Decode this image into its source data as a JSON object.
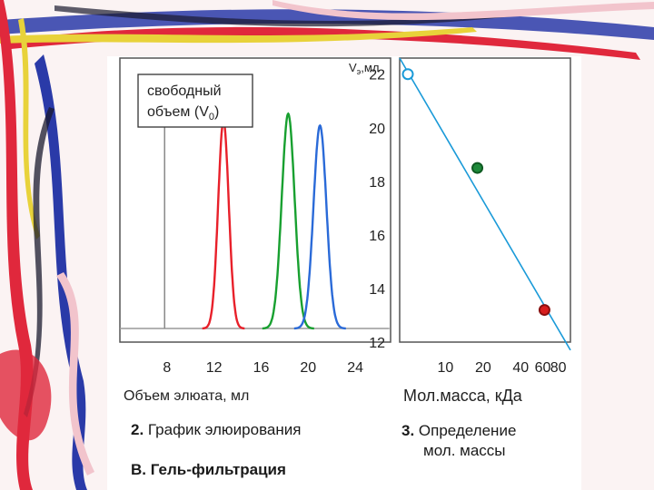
{
  "frame_colors": {
    "background": "#fbf3f3",
    "red": "#e0283c",
    "blue": "#2a3aa8",
    "yellow": "#e8d23a",
    "pink": "#f2c4cc",
    "dark": "#1a1a2e"
  },
  "chart_data": [
    {
      "type": "line",
      "annotation": {
        "line1": "свободный",
        "line2": "объем (V",
        "sub": "0",
        "close": ")"
      },
      "xlabel": "Объем элюата, мл",
      "xticks": [
        8,
        12,
        16,
        20,
        24
      ],
      "xlim": [
        4,
        27
      ],
      "ylim": [
        0,
        1
      ],
      "void_volume": 7.8,
      "series": [
        {
          "color": "#e8202a",
          "center": 12.8,
          "height": 0.88,
          "width": 0.45
        },
        {
          "color": "#18a030",
          "center": 18.3,
          "height": 0.91,
          "width": 0.55
        },
        {
          "color": "#2a6ad8",
          "center": 21.0,
          "height": 0.86,
          "width": 0.55
        }
      ],
      "grid": false
    },
    {
      "type": "scatter",
      "ylabel": "V",
      "ylabel_sub": "э",
      "ylabel_unit": ",мл",
      "yticks": [
        12,
        14,
        16,
        18,
        20,
        22
      ],
      "ylim": [
        12,
        22.6
      ],
      "xlabel": "Мол.масса, кДа",
      "x_scale": "log",
      "xticks": [
        10,
        20,
        40,
        60,
        80
      ],
      "xlim": [
        4.3,
        100
      ],
      "grid": false,
      "fit_line": {
        "color": "#1a9ad8",
        "x": [
          4.3,
          100
        ],
        "y": [
          22.6,
          11.7
        ]
      },
      "points": [
        {
          "x": 5,
          "y": 22.0,
          "color": "#ffffff",
          "stroke": "#1a9ad8"
        },
        {
          "x": 18,
          "y": 18.5,
          "color": "#1e8a3a",
          "stroke": "#0f5a22"
        },
        {
          "x": 62,
          "y": 13.2,
          "color": "#d81e1e",
          "stroke": "#8a1010"
        }
      ]
    }
  ],
  "captions": {
    "caption2_num": "2.",
    "caption2_text": " График элюирования",
    "caption3_num": "3.",
    "caption3_line1": " Определение",
    "caption3_line2": "мол. массы",
    "captionB_text": "В. Гель-фильтрация"
  }
}
